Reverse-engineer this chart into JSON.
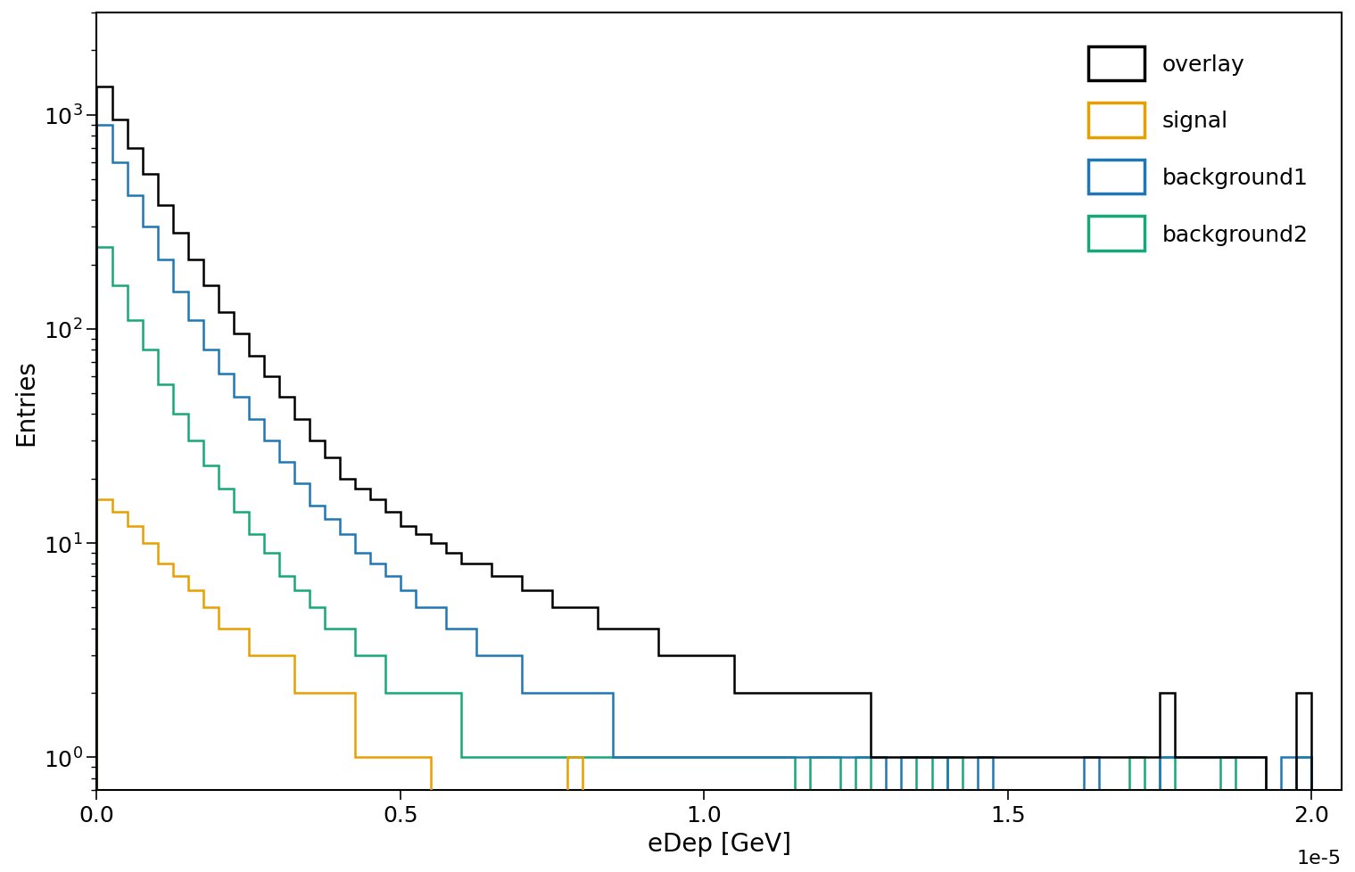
{
  "series": {
    "overlay": {
      "color": "#000000",
      "linewidth": 1.8,
      "label": "overlay",
      "zorder": 4
    },
    "signal": {
      "color": "#E8A000",
      "linewidth": 1.8,
      "label": "signal",
      "zorder": 3
    },
    "background1": {
      "color": "#1F78B4",
      "linewidth": 1.8,
      "label": "background1",
      "zorder": 2
    },
    "background2": {
      "color": "#17A878",
      "linewidth": 1.8,
      "label": "background2",
      "zorder": 1
    }
  },
  "xlabel": "eDep [GeV]",
  "ylabel": "Entries",
  "xlim": [
    0,
    2.05e-05
  ],
  "ylim": [
    0.7,
    3000
  ],
  "xtick_labels": [
    "0.0",
    "0.5",
    "1.0",
    "1.5",
    "2.0"
  ],
  "xtick_values": [
    0.0,
    5e-06,
    1e-05,
    1.5e-05,
    2e-05
  ],
  "background_color": "#ffffff",
  "legend_loc": "upper right",
  "fontsize": 18,
  "label_fontsize": 20,
  "offset_text": "1e-5"
}
